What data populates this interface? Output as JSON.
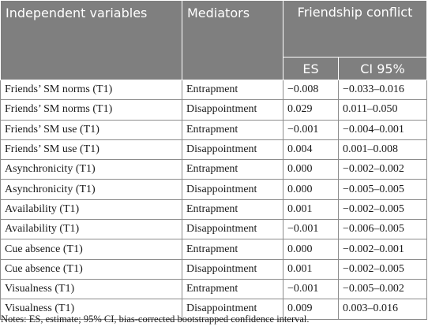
{
  "table": {
    "header": {
      "independent_variables": "Independent variables",
      "mediators": "Mediators",
      "outcome_group": "Friendship conflict",
      "es": "ES",
      "ci": "CI 95%"
    },
    "rows": [
      {
        "variable": "Friends’ SM norms (T1)",
        "mediator": "Entrapment",
        "es": "−0.008",
        "ci": "−0.033–0.016"
      },
      {
        "variable": "Friends’ SM norms (T1)",
        "mediator": "Disappointment",
        "es": "0.029",
        "ci": "0.011–0.050"
      },
      {
        "variable": "Friends’ SM use (T1)",
        "mediator": "Entrapment",
        "es": "−0.001",
        "ci": "−0.004–0.001"
      },
      {
        "variable": "Friends’ SM use (T1)",
        "mediator": "Disappointment",
        "es": "0.004",
        "ci": "0.001–0.008"
      },
      {
        "variable": "Asynchronicity (T1)",
        "mediator": "Entrapment",
        "es": "0.000",
        "ci": "−0.002–0.002"
      },
      {
        "variable": "Asynchronicity (T1)",
        "mediator": "Disappointment",
        "es": "0.000",
        "ci": "−0.005–0.005"
      },
      {
        "variable": "Availability (T1)",
        "mediator": "Entrapment",
        "es": "0.001",
        "ci": "−0.002–0.005"
      },
      {
        "variable": "Availability (T1)",
        "mediator": "Disappointment",
        "es": "−0.001",
        "ci": "−0.006–0.005"
      },
      {
        "variable": "Cue absence (T1)",
        "mediator": "Entrapment",
        "es": "0.000",
        "ci": "−0.002–0.001"
      },
      {
        "variable": "Cue absence (T1)",
        "mediator": "Disappointment",
        "es": "0.001",
        "ci": "−0.002–0.005"
      },
      {
        "variable": "Visualness (T1)",
        "mediator": "Entrapment",
        "es": "−0.001",
        "ci": "−0.005–0.002"
      },
      {
        "variable": "Visualness (T1)",
        "mediator": "Disappointment",
        "es": "0.009",
        "ci": "0.003–0.016"
      }
    ]
  },
  "notes": "Notes: ES, estimate; 95% CI, bias-corrected bootstrapped confidence interval."
}
